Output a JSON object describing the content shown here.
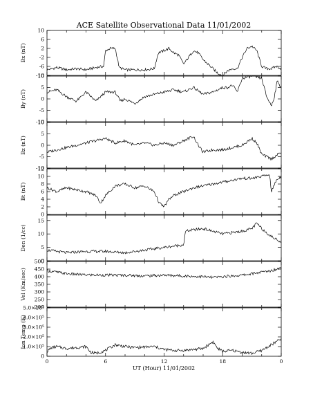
{
  "chart_data": {
    "type": "line",
    "title": "ACE Satellite Observational Data   11/01/2002",
    "xlabel": "UT (Hour)  11/01/2002",
    "x_ticks": [
      "0",
      "6",
      "12",
      "18",
      "0"
    ],
    "x_range": [
      0,
      24
    ],
    "grid": false,
    "panels": [
      {
        "ylabel": "Bx (nT)",
        "ylim": [
          -10,
          10
        ],
        "y_ticks": [
          "10",
          "6",
          "2",
          "-2",
          "-6",
          "-10"
        ],
        "y_tick_values": [
          10,
          6,
          2,
          -2,
          -6,
          -10
        ],
        "points": [
          [
            0,
            -7.5
          ],
          [
            1,
            -6.5
          ],
          [
            2,
            -7.5
          ],
          [
            3,
            -7
          ],
          [
            4,
            -7.5
          ],
          [
            5,
            -6.5
          ],
          [
            5.8,
            -6
          ],
          [
            6,
            1
          ],
          [
            6.5,
            2
          ],
          [
            7,
            2
          ],
          [
            7.4,
            -6.5
          ],
          [
            8,
            -7.5
          ],
          [
            9,
            -7.5
          ],
          [
            10,
            -7.5
          ],
          [
            11,
            -7
          ],
          [
            11.4,
            0
          ],
          [
            12,
            1
          ],
          [
            12.5,
            2
          ],
          [
            13,
            0
          ],
          [
            13.5,
            -1
          ],
          [
            14,
            -5
          ],
          [
            14.5,
            -2
          ],
          [
            15,
            1
          ],
          [
            15.5,
            0
          ],
          [
            16,
            -3
          ],
          [
            16.5,
            -5
          ],
          [
            17,
            -7
          ],
          [
            17.5,
            -9
          ],
          [
            18,
            -10
          ],
          [
            18.5,
            -8
          ],
          [
            19,
            -7
          ],
          [
            19.5,
            -7
          ],
          [
            20,
            -2
          ],
          [
            20.5,
            2
          ],
          [
            21,
            3
          ],
          [
            21.5,
            1
          ],
          [
            22,
            -6
          ],
          [
            22.5,
            -7
          ],
          [
            23,
            -7
          ],
          [
            23.5,
            -6
          ],
          [
            24,
            -7
          ]
        ]
      },
      {
        "ylabel": "By (nT)",
        "ylim": [
          -10,
          10
        ],
        "y_ticks": [
          "10",
          "5",
          "0",
          "-5",
          "-10"
        ],
        "y_tick_values": [
          10,
          5,
          0,
          -5,
          -10
        ],
        "points": [
          [
            0,
            3
          ],
          [
            1,
            4
          ],
          [
            2,
            1
          ],
          [
            3,
            -1
          ],
          [
            4,
            3
          ],
          [
            5,
            -1
          ],
          [
            6,
            3
          ],
          [
            7,
            3
          ],
          [
            7.5,
            -1
          ],
          [
            8,
            0
          ],
          [
            9,
            -2
          ],
          [
            10,
            1
          ],
          [
            11,
            2
          ],
          [
            12,
            3
          ],
          [
            13,
            4
          ],
          [
            14,
            3
          ],
          [
            15,
            5
          ],
          [
            16,
            2
          ],
          [
            17,
            3
          ],
          [
            18,
            5
          ],
          [
            18.5,
            5
          ],
          [
            19,
            6
          ],
          [
            19.5,
            3
          ],
          [
            20,
            9
          ],
          [
            21,
            10
          ],
          [
            22,
            9
          ],
          [
            22.5,
            1
          ],
          [
            23,
            -3
          ],
          [
            23.3,
            1
          ],
          [
            23.6,
            8
          ],
          [
            24,
            5
          ]
        ]
      },
      {
        "ylabel": "Bz (nT)",
        "ylim": [
          -10,
          10
        ],
        "y_ticks": [
          "10",
          "5",
          "0",
          "-5",
          "-10"
        ],
        "y_tick_values": [
          10,
          5,
          0,
          -5,
          -10
        ],
        "points": [
          [
            0,
            -3
          ],
          [
            1,
            -2
          ],
          [
            2,
            -1
          ],
          [
            3,
            0
          ],
          [
            4,
            1
          ],
          [
            5,
            2
          ],
          [
            6,
            3
          ],
          [
            7,
            1
          ],
          [
            8,
            2
          ],
          [
            9,
            0
          ],
          [
            10,
            1
          ],
          [
            11,
            0
          ],
          [
            12,
            1
          ],
          [
            13,
            0
          ],
          [
            14,
            2
          ],
          [
            15,
            4
          ],
          [
            15.5,
            0
          ],
          [
            16,
            -3
          ],
          [
            17,
            -2
          ],
          [
            18,
            -2
          ],
          [
            19,
            -1
          ],
          [
            20,
            0
          ],
          [
            21,
            3
          ],
          [
            21.5,
            1
          ],
          [
            22,
            -4
          ],
          [
            23,
            -6
          ],
          [
            24,
            -3
          ]
        ]
      },
      {
        "ylabel": "Bt (nT)",
        "ylim": [
          0,
          12
        ],
        "y_ticks": [
          "12",
          "10",
          "8",
          "6",
          "4",
          "2",
          "0"
        ],
        "y_tick_values": [
          12,
          10,
          8,
          6,
          4,
          2,
          0
        ],
        "points": [
          [
            0,
            7
          ],
          [
            1,
            6
          ],
          [
            2,
            7
          ],
          [
            3,
            6.5
          ],
          [
            4,
            6
          ],
          [
            5,
            5
          ],
          [
            5.5,
            3
          ],
          [
            6,
            5
          ],
          [
            7,
            7.5
          ],
          [
            8,
            8
          ],
          [
            9,
            7
          ],
          [
            10,
            7.5
          ],
          [
            11,
            6
          ],
          [
            11.5,
            3
          ],
          [
            12,
            2
          ],
          [
            12.5,
            4
          ],
          [
            13,
            5
          ],
          [
            14,
            6
          ],
          [
            15,
            7
          ],
          [
            16,
            7.5
          ],
          [
            17,
            8
          ],
          [
            18,
            8.5
          ],
          [
            19,
            9
          ],
          [
            20,
            9.5
          ],
          [
            21,
            9.5
          ],
          [
            22,
            10
          ],
          [
            22.8,
            10.5
          ],
          [
            23,
            6
          ],
          [
            23.5,
            9
          ],
          [
            24,
            10
          ]
        ]
      },
      {
        "ylabel": "Den (1/cc)",
        "ylim": [
          0,
          17
        ],
        "y_ticks": [
          "15",
          "10",
          "5",
          "0"
        ],
        "y_tick_values": [
          15,
          10,
          5,
          0
        ],
        "points": [
          [
            0,
            4
          ],
          [
            2,
            3
          ],
          [
            4,
            3.5
          ],
          [
            6,
            3.5
          ],
          [
            8,
            3
          ],
          [
            10,
            4
          ],
          [
            12,
            5
          ],
          [
            13,
            5.5
          ],
          [
            14,
            6
          ],
          [
            14.2,
            11
          ],
          [
            15,
            11.5
          ],
          [
            16,
            12
          ],
          [
            17,
            11
          ],
          [
            18,
            10
          ],
          [
            19,
            10.5
          ],
          [
            20,
            11
          ],
          [
            21,
            12
          ],
          [
            21.5,
            14
          ],
          [
            22,
            12
          ],
          [
            23,
            9
          ],
          [
            24,
            7
          ]
        ]
      },
      {
        "ylabel": "Vel (Km/sec)",
        "ylim": [
          200,
          500
        ],
        "y_ticks": [
          "500",
          "450",
          "400",
          "350",
          "300",
          "250",
          "200"
        ],
        "y_tick_values": [
          500,
          450,
          400,
          350,
          300,
          250,
          200
        ],
        "points": [
          [
            0,
            440
          ],
          [
            1,
            430
          ],
          [
            2,
            420
          ],
          [
            3,
            415
          ],
          [
            4,
            412
          ],
          [
            6,
            410
          ],
          [
            8,
            410
          ],
          [
            10,
            405
          ],
          [
            12,
            410
          ],
          [
            14,
            405
          ],
          [
            16,
            400
          ],
          [
            17,
            395
          ],
          [
            18,
            400
          ],
          [
            19,
            405
          ],
          [
            20,
            410
          ],
          [
            21,
            420
          ],
          [
            22,
            430
          ],
          [
            23,
            440
          ],
          [
            24,
            460
          ]
        ]
      },
      {
        "ylabel": "Ion Temp (K)",
        "ylim": [
          0,
          500000
        ],
        "y_ticks": [
          "5.0×10⁵",
          "4.0×10⁵",
          "3.0×10⁵",
          "2.0×10⁵",
          "1.0×10⁵",
          "0"
        ],
        "y_tick_values": [
          500000,
          400000,
          300000,
          200000,
          100000,
          0
        ],
        "points": [
          [
            0,
            50000
          ],
          [
            0.5,
            90000
          ],
          [
            1,
            100000
          ],
          [
            2,
            80000
          ],
          [
            3,
            90000
          ],
          [
            4,
            100000
          ],
          [
            4.5,
            40000
          ],
          [
            5,
            30000
          ],
          [
            6,
            60000
          ],
          [
            7,
            120000
          ],
          [
            8,
            100000
          ],
          [
            9,
            90000
          ],
          [
            10,
            95000
          ],
          [
            11,
            100000
          ],
          [
            12,
            70000
          ],
          [
            13,
            60000
          ],
          [
            14,
            60000
          ],
          [
            15,
            70000
          ],
          [
            16,
            80000
          ],
          [
            17,
            150000
          ],
          [
            17.5,
            80000
          ],
          [
            18,
            50000
          ],
          [
            19,
            60000
          ],
          [
            20,
            40000
          ],
          [
            21,
            30000
          ],
          [
            22,
            60000
          ],
          [
            23,
            120000
          ],
          [
            24,
            180000
          ]
        ]
      }
    ]
  }
}
